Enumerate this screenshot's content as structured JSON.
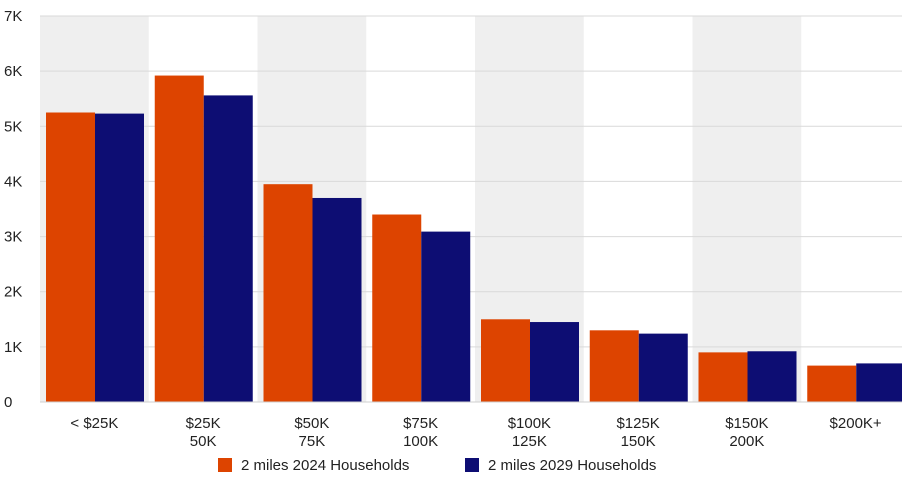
{
  "chart_data": {
    "type": "bar",
    "categories": [
      [
        "< $25K"
      ],
      [
        "$25K",
        "50K"
      ],
      [
        "$50K",
        "75K"
      ],
      [
        "$75K",
        "100K"
      ],
      [
        "$100K",
        "125K"
      ],
      [
        "$125K",
        "150K"
      ],
      [
        "$150K",
        "200K"
      ],
      [
        "$200K+"
      ]
    ],
    "series": [
      {
        "name": "2 miles 2024 Households",
        "color": "#dd4400",
        "values": [
          5250,
          5920,
          3950,
          3400,
          1500,
          1300,
          900,
          660
        ]
      },
      {
        "name": "2 miles 2029 Households",
        "color": "#0d0d73",
        "values": [
          5230,
          5560,
          3700,
          3090,
          1450,
          1240,
          920,
          700
        ]
      }
    ],
    "ylim": [
      0,
      7000
    ],
    "yticks": [
      "0",
      "1K",
      "2K",
      "3K",
      "4K",
      "5K",
      "6K",
      "7K"
    ],
    "ytick_values": [
      0,
      1000,
      2000,
      3000,
      4000,
      5000,
      6000,
      7000
    ],
    "grid": true,
    "alternating_band_color": "#efefef",
    "legend_position": "bottom"
  }
}
